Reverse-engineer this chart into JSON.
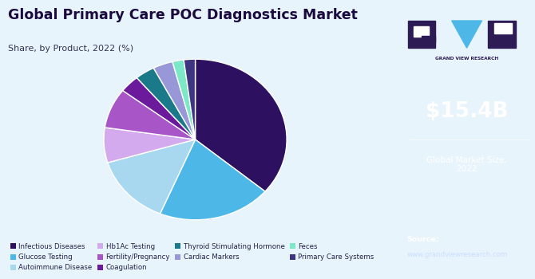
{
  "title": "Global Primary Care POC Diagnostics Market",
  "subtitle": "Share, by Product, 2022 (%)",
  "slices": [
    {
      "label": "Infectious Diseases",
      "value": 36,
      "color": "#2d1060"
    },
    {
      "label": "Glucose Testing",
      "value": 20,
      "color": "#4db8e8"
    },
    {
      "label": "Autoimmune Disease",
      "value": 14,
      "color": "#a8d8f0"
    },
    {
      "label": "Hb1Ac Testing",
      "value": 7,
      "color": "#d4aaee"
    },
    {
      "label": "Fertility/Pregnancy",
      "value": 8,
      "color": "#a855c8"
    },
    {
      "label": "Coagulation",
      "value": 3.5,
      "color": "#6a1a9a"
    },
    {
      "label": "Thyroid Stimulating Hormone",
      "value": 3.5,
      "color": "#1a7a8a"
    },
    {
      "label": "Cardiac Markers",
      "value": 3.5,
      "color": "#9898d8"
    },
    {
      "label": "Feces",
      "value": 2,
      "color": "#7de8c8"
    },
    {
      "label": "Primary Care Systems",
      "value": 2,
      "color": "#3d3580"
    }
  ],
  "sidebar_bg": "#2d1b55",
  "sidebar_bottom_bg": "#5566aa",
  "main_bg": "#e8f4fb",
  "market_size": "$15.4B",
  "market_label": "Global Market Size,\n2022",
  "source_label": "Source:",
  "source_url": "www.grandviewresearch.com",
  "title_color": "#1a0a3e",
  "subtitle_color": "#333355",
  "legend_cols": 4
}
